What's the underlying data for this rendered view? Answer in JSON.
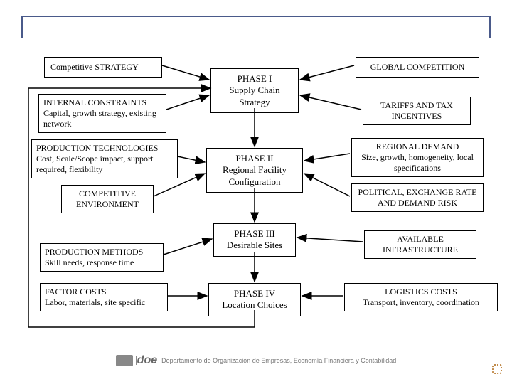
{
  "diagram": {
    "type": "flowchart",
    "background_color": "#ffffff",
    "border_color": "#000000",
    "frame_color": "#4a5a8a",
    "font_family": "Times New Roman",
    "left": {
      "b1": "Competitive STRATEGY",
      "b2": "INTERNAL CONSTRAINTS\nCapital, growth strategy, existing network",
      "b3": "PRODUCTION TECHNOLOGIES\nCost, Scale/Scope impact, support required, flexibility",
      "b4": "COMPETITIVE ENVIRONMENT",
      "b5": "PRODUCTION METHODS\nSkill needs, response time",
      "b6": "FACTOR COSTS\nLabor, materials, site specific"
    },
    "center": {
      "p1": "PHASE I\nSupply Chain Strategy",
      "p2": "PHASE II\nRegional Facility Configuration",
      "p3": "PHASE III\nDesirable Sites",
      "p4": "PHASE IV\nLocation Choices"
    },
    "right": {
      "r1": "GLOBAL COMPETITION",
      "r2": "TARIFFS AND TAX INCENTIVES",
      "r3": "REGIONAL DEMAND\nSize, growth, homogeneity, local specifications",
      "r4": "POLITICAL, EXCHANGE RATE AND DEMAND RISK",
      "r5": "AVAILABLE INFRASTRUCTURE",
      "r6": "LOGISTICS COSTS\nTransport, inventory, coordination"
    },
    "arrow_color": "#000000",
    "footer_text": "Departamento de Organización de Empresas, Economía Financiera y Contabilidad",
    "footer_brand": "doe"
  }
}
